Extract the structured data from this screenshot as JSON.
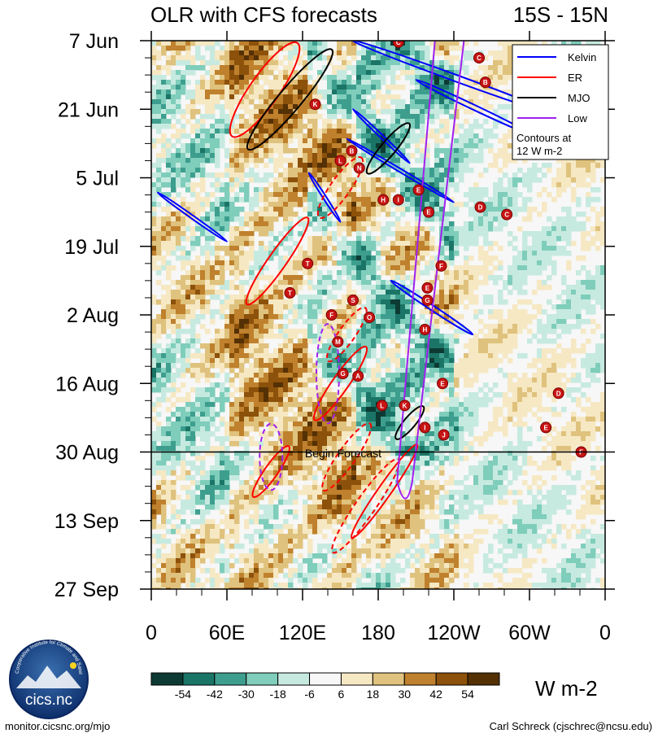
{
  "chart_data": {
    "type": "heatmap",
    "title": "OLR with CFS forecasts",
    "region": "15S - 15N",
    "x_tick_labels": [
      "0",
      "60E",
      "120E",
      "180",
      "120W",
      "60W",
      "0"
    ],
    "x_range_deg": [
      0,
      360
    ],
    "y_tick_labels": [
      "7 Jun",
      "21 Jun",
      "5 Jul",
      "19 Jul",
      "2 Aug",
      "16 Aug",
      "30 Aug",
      "13 Sep",
      "27 Sep"
    ],
    "y_range_days": [
      0,
      112
    ],
    "forecast_start_day": 84,
    "forecast_label": "Begin Forecast",
    "colorbar": {
      "units": "W m-2",
      "tick_labels": [
        "-54",
        "-42",
        "-30",
        "-18",
        "-6",
        "6",
        "18",
        "30",
        "42",
        "54"
      ],
      "colors": [
        "#0d3b33",
        "#1a7567",
        "#3d9e8e",
        "#7fcdbb",
        "#c7eae0",
        "#f7f7f7",
        "#f6e8c3",
        "#dfc27d",
        "#bf812d",
        "#8c510a",
        "#543005"
      ]
    },
    "legend": {
      "position": "top-right",
      "entries": [
        {
          "name": "Kelvin",
          "color": "#0000ff"
        },
        {
          "name": "ER",
          "color": "#ff0000"
        },
        {
          "name": "MJO",
          "color": "#000000"
        },
        {
          "name": "Low",
          "color": "#a020f0"
        }
      ],
      "note_line1": "Contours at",
      "note_line2": "12 W m-2"
    },
    "storms": [
      {
        "letter": "C",
        "lon": 196,
        "day": 0.3
      },
      {
        "letter": "K",
        "lon": 130,
        "day": 13
      },
      {
        "letter": "B",
        "lon": 159,
        "day": 22.5
      },
      {
        "letter": "L",
        "lon": 150,
        "day": 24.5
      },
      {
        "letter": "N",
        "lon": 165,
        "day": 26
      },
      {
        "letter": "H",
        "lon": 184,
        "day": 32.5
      },
      {
        "letter": "I",
        "lon": 196,
        "day": 32.5
      },
      {
        "letter": "E",
        "lon": 212,
        "day": 30.5
      },
      {
        "letter": "E",
        "lon": 220,
        "day": 35
      },
      {
        "letter": "T",
        "lon": 124,
        "day": 45.5
      },
      {
        "letter": "T",
        "lon": 110,
        "day": 51.5
      },
      {
        "letter": "S",
        "lon": 160,
        "day": 53
      },
      {
        "letter": "O",
        "lon": 173,
        "day": 56.5
      },
      {
        "letter": "F",
        "lon": 143,
        "day": 56
      },
      {
        "letter": "M",
        "lon": 148,
        "day": 61.5
      },
      {
        "letter": "G",
        "lon": 152,
        "day": 68
      },
      {
        "letter": "A",
        "lon": 164,
        "day": 68.5
      },
      {
        "letter": "L",
        "lon": 183,
        "day": 74.5
      },
      {
        "letter": "K",
        "lon": 201,
        "day": 74.5
      },
      {
        "letter": "I",
        "lon": 217,
        "day": 79
      },
      {
        "letter": "J",
        "lon": 232,
        "day": 80.5
      },
      {
        "letter": "F",
        "lon": 230,
        "day": 46
      },
      {
        "letter": "E",
        "lon": 219,
        "day": 50.5
      },
      {
        "letter": "G",
        "lon": 219,
        "day": 53
      },
      {
        "letter": "H",
        "lon": 217,
        "day": 59
      },
      {
        "letter": "E",
        "lon": 231,
        "day": 70
      },
      {
        "letter": "C",
        "lon": 260,
        "day": 3.5
      },
      {
        "letter": "B",
        "lon": 265,
        "day": 8.5
      },
      {
        "letter": "D",
        "lon": 261,
        "day": 34
      },
      {
        "letter": "C",
        "lon": 282,
        "day": 35.5
      },
      {
        "letter": "D",
        "lon": 323,
        "day": 72
      },
      {
        "letter": "E",
        "lon": 313,
        "day": 79
      },
      {
        "letter": "F",
        "lon": 341,
        "day": 84
      }
    ]
  },
  "footer": {
    "logo_text": "cics.nc",
    "logo_ring_text": "Cooperative Institute for Climate and Satellites",
    "website": "monitor.cicsnc.org/mjo",
    "credit": "Carl Schreck (cjschrec@ncsu.edu)"
  }
}
